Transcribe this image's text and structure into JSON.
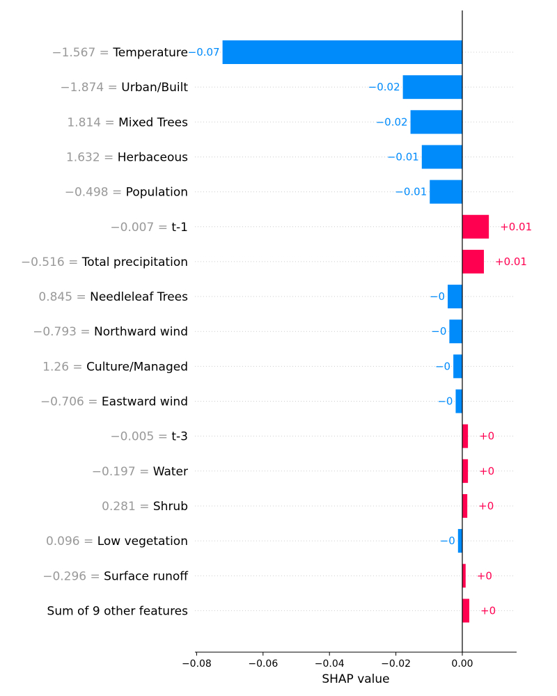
{
  "chart_data": {
    "type": "bar",
    "orientation": "horizontal",
    "xlabel": "SHAP value",
    "xlim": [
      -0.081,
      0.0164
    ],
    "xticks": [
      -0.08,
      -0.06,
      -0.04,
      -0.02,
      0.0
    ],
    "xtick_labels": [
      "−0.08",
      "−0.06",
      "−0.04",
      "−0.02",
      "0.00"
    ],
    "colors": {
      "positive": "#ff0051",
      "negative": "#008bfb",
      "feature_value": "#999999"
    },
    "grid": "dotted row lines",
    "rows": [
      {
        "feature_value": "−1.567 =",
        "feature": "Temperature",
        "shap": -0.0722,
        "label": "−0.07"
      },
      {
        "feature_value": "−1.874 =",
        "feature": "Urban/Built",
        "shap": -0.0179,
        "label": "−0.02"
      },
      {
        "feature_value": "1.814 =",
        "feature": "Mixed Trees",
        "shap": -0.0156,
        "label": "−0.02"
      },
      {
        "feature_value": "1.632 =",
        "feature": "Herbaceous",
        "shap": -0.0122,
        "label": "−0.01"
      },
      {
        "feature_value": "−0.498 =",
        "feature": "Population",
        "shap": -0.0098,
        "label": "−0.01"
      },
      {
        "feature_value": "−0.007 =",
        "feature": "t-1",
        "shap": 0.008,
        "label": "+0.01"
      },
      {
        "feature_value": "−0.516 =",
        "feature": "Total precipitation",
        "shap": 0.0065,
        "label": "+0.01"
      },
      {
        "feature_value": "0.845 =",
        "feature": "Needleleaf Trees",
        "shap": -0.0044,
        "label": "−0"
      },
      {
        "feature_value": "−0.793 =",
        "feature": "Northward wind",
        "shap": -0.0039,
        "label": "−0"
      },
      {
        "feature_value": "1.26 =",
        "feature": "Culture/Managed",
        "shap": -0.0027,
        "label": "−0"
      },
      {
        "feature_value": "−0.706 =",
        "feature": "Eastward wind",
        "shap": -0.002,
        "label": "−0"
      },
      {
        "feature_value": "−0.005 =",
        "feature": "t-3",
        "shap": 0.0017,
        "label": "+0"
      },
      {
        "feature_value": "−0.197 =",
        "feature": "Water",
        "shap": 0.0017,
        "label": "+0"
      },
      {
        "feature_value": "0.281 =",
        "feature": "Shrub",
        "shap": 0.0015,
        "label": "+0"
      },
      {
        "feature_value": "0.096 =",
        "feature": "Low vegetation",
        "shap": -0.0013,
        "label": "−0"
      },
      {
        "feature_value": "−0.296 =",
        "feature": "Surface runoff",
        "shap": 0.001,
        "label": "+0"
      },
      {
        "feature_value": "",
        "feature": "Sum of 9 other features",
        "shap": 0.0021,
        "label": "+0"
      }
    ]
  }
}
